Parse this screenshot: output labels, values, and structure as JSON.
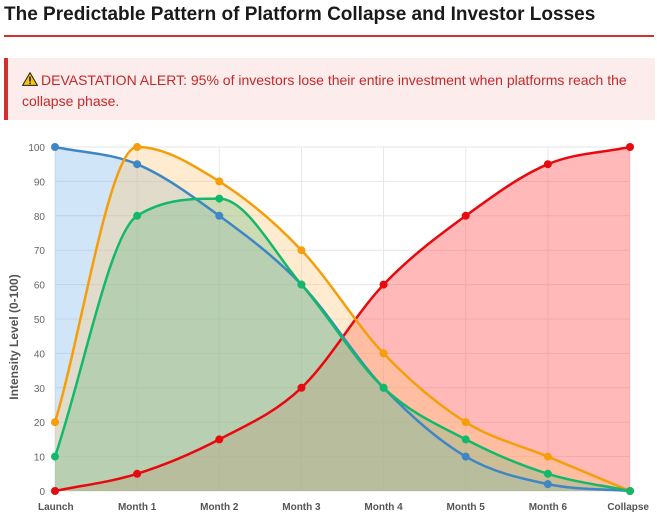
{
  "page": {
    "title": "The Predictable Pattern of Platform Collapse and Investor Losses"
  },
  "alert": {
    "icon": "warning-triangle-icon",
    "text": "DEVASTATION ALERT: 95% of investors lose their entire investment when platforms reach the collapse phase.",
    "color": "#d32f2f",
    "background": "#fdecec"
  },
  "chart_data": {
    "type": "area",
    "categories": [
      "Launch",
      "Month 1",
      "Month 2",
      "Month 3",
      "Month 4",
      "Month 5",
      "Month 6",
      "Collapse"
    ],
    "ylabel": "Intensity Level (0-100)",
    "xlabel": "",
    "ylim": [
      0,
      100
    ],
    "yticks": [
      0,
      10,
      20,
      30,
      40,
      50,
      60,
      70,
      80,
      90,
      100
    ],
    "grid": true,
    "legend": "none",
    "series": [
      {
        "values": [
          0,
          5,
          15,
          30,
          60,
          80,
          95,
          100
        ],
        "color": "#e8090f",
        "fill": "rgba(255,99,99,0.45)"
      },
      {
        "values": [
          100,
          95,
          80,
          60,
          30,
          10,
          2,
          0
        ],
        "color": "#3e87c4",
        "fill": "rgba(120,180,235,0.35)"
      },
      {
        "values": [
          20,
          100,
          90,
          70,
          40,
          20,
          10,
          0
        ],
        "color": "#f59e0b",
        "fill": "rgba(255,200,120,0.35)"
      },
      {
        "values": [
          10,
          80,
          85,
          60,
          30,
          15,
          5,
          0
        ],
        "color": "#14b86a",
        "fill": "rgba(110,190,130,0.35)"
      }
    ]
  }
}
